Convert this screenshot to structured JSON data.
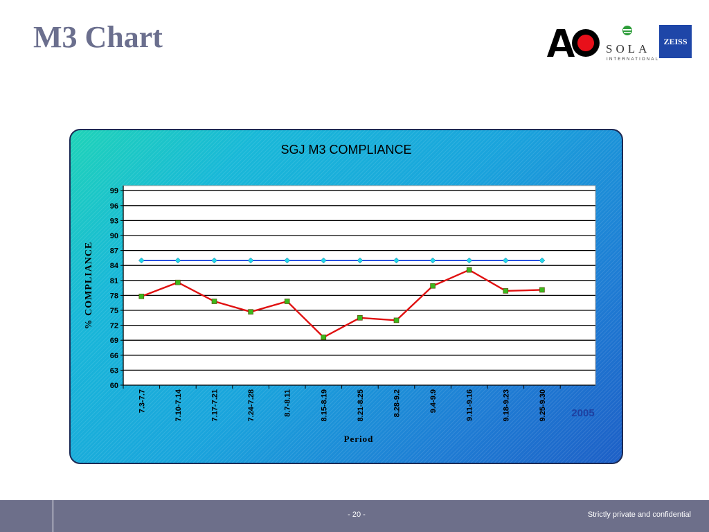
{
  "slide": {
    "title": "M3 Chart",
    "page_number": "- 20 -",
    "confidentiality": "Strictly private and confidential"
  },
  "logos": {
    "ao_text": "AO",
    "sola_text": "SOLA",
    "sola_sub": "INTERNATIONAL",
    "zeiss_text": "ZEISS"
  },
  "colors": {
    "compliance_line": "#e01010",
    "compliance_marker": "#3cb81c",
    "target_line": "#2850e0",
    "target_marker": "#22d8e8",
    "year_label": "#1e40a0"
  },
  "chart_data": {
    "type": "line",
    "title": "SGJ M3 COMPLIANCE",
    "xlabel": "Period",
    "ylabel": "% COMPLIANCE",
    "ylim": [
      60,
      100
    ],
    "yticks": [
      60,
      63,
      66,
      69,
      72,
      75,
      78,
      81,
      84,
      87,
      90,
      93,
      96,
      99
    ],
    "grid": true,
    "categories": [
      "7.3-7.7",
      "7.10-7.14",
      "7.17-7.21",
      "7.24-7.28",
      "8.7-8.11",
      "8.15-8.19",
      "8.21-8.25",
      "8.28-9.2",
      "9.4-9.9",
      "9.11-9.16",
      "9.18-9.23",
      "9.25-9.30"
    ],
    "group_label": "2005",
    "series": [
      {
        "values": [
          77.8,
          80.6,
          76.8,
          74.7,
          76.8,
          69.6,
          73.5,
          73.0,
          79.9,
          83.1,
          78.9,
          79.1
        ]
      },
      {
        "values": [
          85,
          85,
          85,
          85,
          85,
          85,
          85,
          85,
          85,
          85,
          85,
          85
        ]
      }
    ]
  }
}
